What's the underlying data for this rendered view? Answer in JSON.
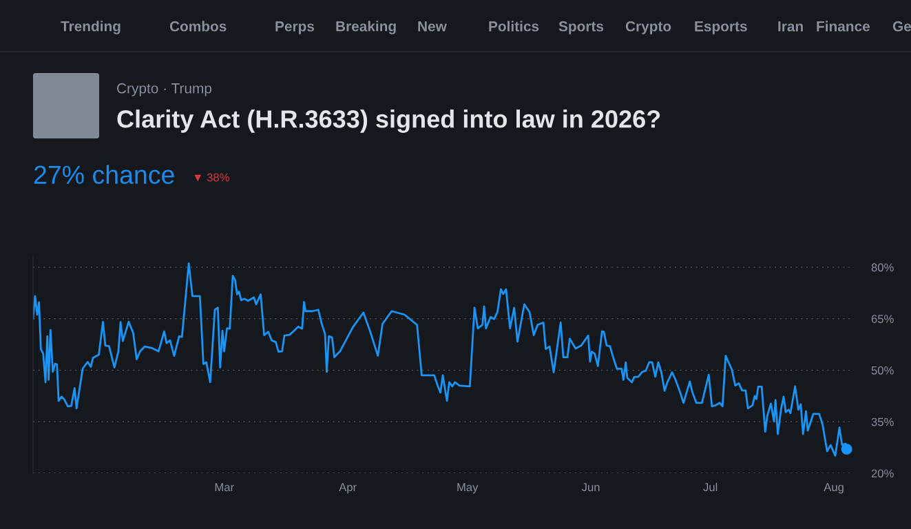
{
  "chart_data": {
    "type": "line",
    "title": "Clarity Act (H.R.3633) signed into law in 2026?",
    "subtitle": "Crypto · Trump",
    "annotations": [
      "Trending",
      "Combos",
      "Perps",
      "Breaking",
      "New",
      "Politics",
      "Sports",
      "Crypto",
      "Esports",
      "Iran",
      "Finance",
      "Ge",
      "27% chance",
      "▼ 38%"
    ],
    "x": [
      "2026-01-12T00:00",
      "2026-01-12T12:00",
      "2026-01-13T01:00",
      "2026-01-13T12:00",
      "2026-01-13T23:00",
      "2026-01-14T13:00",
      "2026-01-15T03:00",
      "2026-01-15T14:00",
      "2026-01-15T22:00",
      "2026-01-16T09:00",
      "2026-01-16T23:00",
      "2026-01-17T13:00",
      "2026-01-18T00:00",
      "2026-01-18T10:00",
      "2026-01-19T04:00",
      "2026-01-19T20:00",
      "2026-01-20T17:00",
      "2026-01-21T14:00",
      "2026-01-22T10:00",
      "2026-01-22T22:00",
      "2026-01-24T11:00",
      "2026-01-25T17:00",
      "2026-01-26T12:00",
      "2026-01-27T01:00",
      "2026-01-28T12:00",
      "2026-01-29T13:00",
      "2026-01-30T03:00",
      "2026-01-31T02:00",
      "2026-02-01T10:00",
      "2026-02-02T10:00",
      "2026-02-02T23:00",
      "2026-02-03T13:00",
      "2026-02-05T00:00",
      "2026-02-06T03:00",
      "2026-02-07T00:00",
      "2026-02-07T21:00",
      "2026-02-09T01:00",
      "2026-02-10T18:00",
      "2026-02-12T12:00",
      "2026-02-13T22:00",
      "2026-02-14T12:00",
      "2026-02-15T09:00",
      "2026-02-16T10:00",
      "2026-02-17T16:00",
      "2026-02-18T09:00",
      "2026-02-20T02:00",
      "2026-02-21T00:00",
      "2026-02-22T21:00",
      "2026-02-23T18:00",
      "2026-02-24T12:00",
      "2026-02-25T11:00",
      "2026-02-26T15:00",
      "2026-02-27T09:00",
      "2026-02-27T23:00",
      "2026-02-28T13:00",
      "2026-02-28T23:00",
      "2026-03-01T16:00",
      "2026-03-02T09:00",
      "2026-03-03T03:00",
      "2026-03-03T17:00",
      "2026-03-04T05:00",
      "2026-03-04T16:00",
      "2026-03-05T06:00",
      "2026-03-06T03:00",
      "2026-03-06T23:00",
      "2026-03-08T10:00",
      "2026-03-09T00:00",
      "2026-03-10T03:00",
      "2026-03-11T00:00",
      "2026-03-12T01:00",
      "2026-03-12T21:00",
      "2026-03-13T22:00",
      "2026-03-14T14:00",
      "2026-03-15T12:00",
      "2026-03-16T02:00",
      "2026-03-17T09:00",
      "2026-03-18T12:00",
      "2026-03-19T13:00",
      "2026-03-20T13:00",
      "2026-03-21T00:00",
      "2026-03-21T09:00",
      "2026-03-23T03:00",
      "2026-03-24T14:00",
      "2026-03-25T11:00",
      "2026-03-26T07:00",
      "2026-03-26T17:00",
      "2026-03-27T06:00",
      "2026-03-28T01:00",
      "2026-03-28T15:00",
      "2026-03-30T01:00",
      "2026-04-02T06:00",
      "2026-04-04T22:00",
      "2026-04-06T13:00",
      "2026-04-08T13:00",
      "2026-04-09T17:00",
      "2026-04-12T00:00",
      "2026-04-15T05:00",
      "2026-04-18T09:00",
      "2026-04-19T13:00",
      "2026-04-22T17:00",
      "2026-04-23T13:00",
      "2026-04-24T06:00",
      "2026-04-24T20:00",
      "2026-04-25T21:00",
      "2026-04-26T11:00",
      "2026-04-27T05:00",
      "2026-04-27T21:00",
      "2026-04-29T01:00",
      "2026-05-01T15:00",
      "2026-05-02T19:00",
      "2026-05-03T15:00",
      "2026-05-04T19:00",
      "2026-05-05T05:00",
      "2026-05-05T16:00",
      "2026-05-06T20:00",
      "2026-05-07T17:00",
      "2026-05-08T13:00",
      "2026-05-09T10:00",
      "2026-05-10T00:00",
      "2026-05-10T17:00",
      "2026-05-11T17:00",
      "2026-05-12T18:00",
      "2026-05-13T14:00",
      "2026-05-15T07:00",
      "2026-05-16T15:00",
      "2026-05-17T16:00",
      "2026-05-18T15:00",
      "2026-05-20T02:00",
      "2026-05-20T16:00",
      "2026-05-21T15:00",
      "2026-05-22T16:00",
      "2026-05-24T10:00",
      "2026-05-25T02:00",
      "2026-05-26T03:00",
      "2026-05-26T17:00",
      "2026-05-28T04:00",
      "2026-05-29T14:00",
      "2026-05-31T08:00",
      "2026-05-31T19:00",
      "2026-06-01T05:00",
      "2026-06-01T23:00",
      "2026-06-02T18:00",
      "2026-06-03T19:00",
      "2026-06-04T06:00",
      "2026-06-04T23:00",
      "2026-06-05T19:00",
      "2026-06-06T16:00",
      "2026-06-07T13:00",
      "2026-06-08T17:00",
      "2026-06-09T04:00",
      "2026-06-09T18:00",
      "2026-06-10T03:00",
      "2026-06-11T07:00",
      "2026-06-11T21:00",
      "2026-06-12T22:00",
      "2026-06-13T21:00",
      "2026-06-14T18:00",
      "2026-06-15T15:00",
      "2026-06-16T09:00",
      "2026-06-17T04:00",
      "2026-06-17T22:00",
      "2026-06-18T16:00",
      "2026-06-19T12:00",
      "2026-06-20T05:00",
      "2026-06-21T09:00",
      "2026-06-22T06:00",
      "2026-06-23T10:00",
      "2026-06-24T06:00",
      "2026-06-25T20:00",
      "2026-06-26T10:00",
      "2026-06-27T11:00",
      "2026-06-28T21:00",
      "2026-06-30T14:00",
      "2026-07-01T09:00",
      "2026-07-02T08:00",
      "2026-07-03T08:00",
      "2026-07-04T01:00",
      "2026-07-04T20:00",
      "2026-07-06T09:00",
      "2026-07-07T06:00",
      "2026-07-08T03:00",
      "2026-07-08T23:00",
      "2026-07-09T20:00",
      "2026-07-10T10:00",
      "2026-07-11T14:00",
      "2026-07-12T03:00",
      "2026-07-12T13:00",
      "2026-07-13T00:00",
      "2026-07-13T21:00",
      "2026-07-14T18:00",
      "2026-07-15T07:00",
      "2026-07-16T04:00",
      "2026-07-16T23:00",
      "2026-07-17T08:00",
      "2026-07-17T22:00",
      "2026-07-18T18:00",
      "2026-07-19T09:00",
      "2026-07-19T22:00",
      "2026-07-20T15:00",
      "2026-07-21T02:00",
      "2026-07-22T06:00",
      "2026-07-23T02:00",
      "2026-07-23T16:00",
      "2026-07-24T06:00",
      "2026-07-25T00:00",
      "2026-07-25T10:00",
      "2026-07-26T20:00",
      "2026-07-28T07:00",
      "2026-07-29T04:00",
      "2026-07-30T07:00",
      "2026-07-31T04:00",
      "2026-08-01T08:00",
      "2026-08-02T09:00",
      "2026-08-03T01:00",
      "2026-08-03T22:00",
      "2026-08-04T05:00"
    ],
    "series": [
      {
        "color": "#1a94f5",
        "values": [
          65,
          71.6,
          66.2,
          69.8,
          56.2,
          54.8,
          46.5,
          59.9,
          47.2,
          61.7,
          49.5,
          51.9,
          51.7,
          41.1,
          42.3,
          41.5,
          39.5,
          39.6,
          44.8,
          38.9,
          50.5,
          52.4,
          51,
          53.6,
          54.5,
          64.1,
          57.2,
          57,
          50.8,
          55.5,
          64,
          58.5,
          64.1,
          60.9,
          53.2,
          55.5,
          56.9,
          56.5,
          55.5,
          61.3,
          57.9,
          58.7,
          54.2,
          59.9,
          59.7,
          81.1,
          71.6,
          71.6,
          51.8,
          52.3,
          46.5,
          67.6,
          68.2,
          50.8,
          61.5,
          55.5,
          62.2,
          62.1,
          77.5,
          76.3,
          72.1,
          72.9,
          70.4,
          70.8,
          70.2,
          71.2,
          69.2,
          72.1,
          60.2,
          61.2,
          58.7,
          58.2,
          55.4,
          55.5,
          60.1,
          60.3,
          61.5,
          62.7,
          62.1,
          69.9,
          67.2,
          67.2,
          67.6,
          63.5,
          60.5,
          49.5,
          59.9,
          59.5,
          53.8,
          55.5,
          62.5,
          66.8,
          61.5,
          54.2,
          63.5,
          67.2,
          66.2,
          63.2,
          48.5,
          48.5,
          45.5,
          43.5,
          48.5,
          41.1,
          46.5,
          45.3,
          46.5,
          45.5,
          45.3,
          68.2,
          62.2,
          63.2,
          68.6,
          62.2,
          65.5,
          64.9,
          66.9,
          73.6,
          72.2,
          73.6,
          62.2,
          68.2,
          58.3,
          69.2,
          66.9,
          60.2,
          63.2,
          63.9,
          56.2,
          56.9,
          49.4,
          63.9,
          53.8,
          53.8,
          59.2,
          56.3,
          57.2,
          60.1,
          52.5,
          55.4,
          54.8,
          51.2,
          61.3,
          61.2,
          57.2,
          57,
          53.5,
          50.4,
          50.4,
          47.2,
          52.3,
          47.8,
          46.5,
          48,
          48.1,
          49.5,
          49.8,
          52.3,
          52.3,
          48.1,
          52.3,
          49.5,
          44,
          46.5,
          49.4,
          47.2,
          43.5,
          40.5,
          46.7,
          43.8,
          40.5,
          40.5,
          48.7,
          39.5,
          39.8,
          40.5,
          39.5,
          54.2,
          50.2,
          45.5,
          46.2,
          44.1,
          44.1,
          38.9,
          39.8,
          42.5,
          41.6,
          45.2,
          45.2,
          32.1,
          36.8,
          40.3,
          35.1,
          41.3,
          31.4,
          38.8,
          42.3,
          37.8,
          38.5,
          37.5,
          45.3,
          38.5,
          40.1,
          31.4,
          38.1,
          32.4,
          37.3,
          37.3,
          34.1,
          26.4,
          28.2,
          25.1,
          33.3,
          28.2,
          28.6,
          27
        ]
      },
      {
        "type": "scatter",
        "color": "#1a94f5",
        "x": [
          "2026-08-04T05:00"
        ],
        "values": [
          27
        ]
      }
    ],
    "xlim": [
      "2026-01-12",
      "2026-08-06"
    ],
    "xticks": [
      {
        "value": "2026-03-01",
        "label": "Mar"
      },
      {
        "value": "2026-04-01",
        "label": "Apr"
      },
      {
        "value": "2026-05-01",
        "label": "May"
      },
      {
        "value": "2026-06-01",
        "label": "Jun"
      },
      {
        "value": "2026-07-01",
        "label": "Jul"
      },
      {
        "value": "2026-08-01",
        "label": "Aug"
      }
    ],
    "ylim": [
      20,
      83
    ],
    "yticks": [
      {
        "value": 20,
        "label": "20%"
      },
      {
        "value": 35,
        "label": "35%"
      },
      {
        "value": 50,
        "label": "50%"
      },
      {
        "value": 65,
        "label": "65%"
      },
      {
        "value": 80,
        "label": "80%"
      }
    ],
    "grid": "y",
    "legend": false
  }
}
